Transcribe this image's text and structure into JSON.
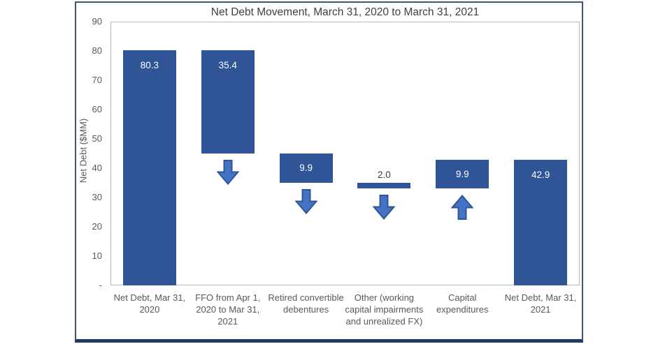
{
  "chart_data": {
    "type": "bar",
    "subtype": "waterfall",
    "title": "Net Debt Movement, March 31, 2020 to March 31, 2021",
    "ylabel": "Net Debt ($MM)",
    "xlabel": "",
    "ylim": [
      0,
      90
    ],
    "grid": false,
    "legend": null,
    "yticks": [
      {
        "label": "90",
        "value": 90
      },
      {
        "label": "80",
        "value": 80
      },
      {
        "label": "70",
        "value": 70
      },
      {
        "label": "60",
        "value": 60
      },
      {
        "label": "50",
        "value": 50
      },
      {
        "label": "40",
        "value": 40
      },
      {
        "label": "30",
        "value": 30
      },
      {
        "label": "20",
        "value": 20
      },
      {
        "label": "10",
        "value": 10
      },
      {
        "label": "-",
        "value": 0
      }
    ],
    "categories": [
      "Net Debt, Mar 31, 2020",
      "FFO from Apr 1, 2020 to Mar 31, 2021",
      "Retired convertible debentures",
      "Other (working capital impairments and unrealized FX)",
      "Capital expenditures",
      "Net Debt, Mar 31, 2021"
    ],
    "bars": [
      {
        "category": "Net Debt, Mar 31, 2020",
        "value": 80.3,
        "label": "80.3",
        "from": 0,
        "to": 80.3,
        "arrow": null,
        "label_position": "inside"
      },
      {
        "category": "FFO from Apr 1, 2020 to Mar 31, 2021",
        "value": 35.4,
        "label": "35.4",
        "from": 44.9,
        "to": 80.3,
        "arrow": "down",
        "label_position": "inside"
      },
      {
        "category": "Retired convertible debentures",
        "value": 9.9,
        "label": "9.9",
        "from": 35.0,
        "to": 44.9,
        "arrow": "down",
        "label_position": "inside"
      },
      {
        "category": "Other (working capital impairments and unrealized FX)",
        "value": 2.0,
        "label": "2.0",
        "from": 33.0,
        "to": 35.0,
        "arrow": "down",
        "label_position": "above"
      },
      {
        "category": "Capital expenditures",
        "value": 9.9,
        "label": "9.9",
        "from": 33.0,
        "to": 42.9,
        "arrow": "up",
        "label_position": "inside"
      },
      {
        "category": "Net Debt, Mar 31, 2021",
        "value": 42.9,
        "label": "42.9",
        "from": 0,
        "to": 42.9,
        "arrow": null,
        "label_position": "inside"
      }
    ],
    "colors": {
      "bar_fill": "#2F5597",
      "arrow_fill": "#4472C4",
      "arrow_stroke": "#2F5597",
      "title_text": "#404040",
      "axis_text": "#595959",
      "label_inside_text": "#FFFFFF",
      "label_above_text": "#404040",
      "frame_border": "#44546A",
      "frame_bottom_border": "#203864",
      "plot_border": "#A9B8CB"
    }
  }
}
